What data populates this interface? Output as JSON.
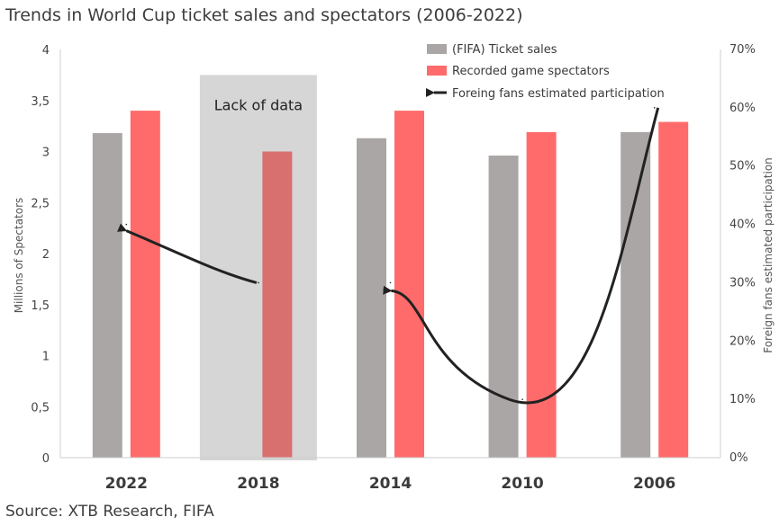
{
  "title": "Trends in World Cup ticket sales and spectators (2006-2022)",
  "source": "Source: XTB Research, FIFA",
  "colors": {
    "ticket_sales": "#aaa6a5",
    "spectators": "#ff6b6b",
    "spectators_shaded": "#d87070",
    "shade": "#d6d6d6",
    "line": "#222222"
  },
  "chart_data": {
    "type": "bar",
    "categories": [
      "2022",
      "2018",
      "2014",
      "2010",
      "2006"
    ],
    "series": [
      {
        "name": "(FIFA) Ticket sales",
        "values": [
          3.18,
          null,
          3.13,
          2.96,
          3.19
        ]
      },
      {
        "name": "Recorded game spectators",
        "values": [
          3.4,
          3.0,
          3.4,
          3.19,
          3.29
        ]
      },
      {
        "name": "Foreing fans estimated participation",
        "axis": "right",
        "type": "line",
        "values": [
          0.4,
          0.3,
          0.3,
          0.1,
          0.6
        ]
      }
    ],
    "ylabel": "Millions of Spectators",
    "ylim": [
      0,
      4
    ],
    "y_ticks": [
      "0",
      "0,5",
      "1",
      "1,5",
      "2",
      "2,5",
      "3",
      "3,5",
      "4"
    ],
    "y2label": "Foreign fans estimated participation",
    "y2lim": [
      0,
      0.7
    ],
    "y2_ticks": [
      "0%",
      "10%",
      "20%",
      "30%",
      "40%",
      "50%",
      "60%",
      "70%"
    ],
    "annotation": "Lack of data",
    "legend_position": "top-right",
    "grid": false
  }
}
